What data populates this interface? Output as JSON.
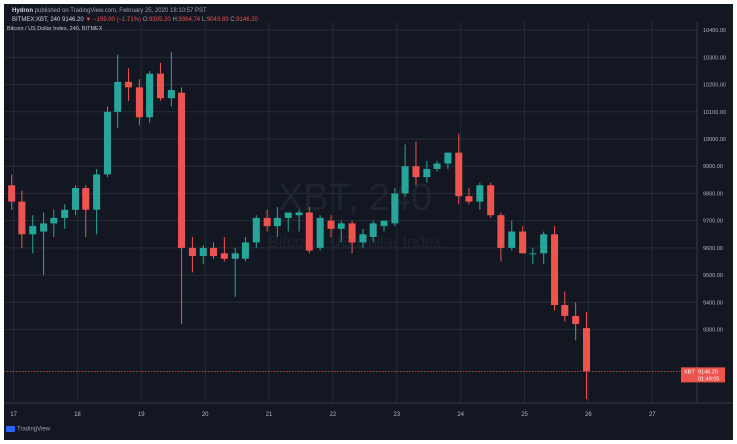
{
  "header": {
    "line1_author": "Hydron",
    "line1_rest": "published on TradingView.com, February 25, 2020 18:10:57 PST",
    "symbol": "BITMEX:XBT, 240",
    "price": "9146.20",
    "change": "▼ −159.00 (−1.71%)",
    "ohlc": [
      {
        "label": "O:",
        "value": "9305.20"
      },
      {
        "label": "H:",
        "value": "9364.74"
      },
      {
        "label": "L:",
        "value": "9043.83"
      },
      {
        "label": "C:",
        "value": "9146.20"
      }
    ]
  },
  "chart_title": "Bitcoin / US Dollar Index, 240, BITMEX",
  "watermark": {
    "main": "XBT, 240",
    "sub": "Bitcoin / US Dollar Index"
  },
  "footer": {
    "brand": "TradingView"
  },
  "price_tag": {
    "symbol": "XBT",
    "value": "9146.20",
    "countdown": "01:49:05"
  },
  "colors": {
    "background": "#131722",
    "up": "#26a69a",
    "down": "#ef5350",
    "grid": "#262b36",
    "text": "#b2b5be"
  },
  "chart_data": {
    "type": "candlestick",
    "x_ticks": [
      "17",
      "18",
      "19",
      "20",
      "21",
      "22",
      "23",
      "24",
      "25",
      "26",
      "27"
    ],
    "y_ticks": [
      9300,
      9400,
      9500,
      9600,
      9700,
      9800,
      9900,
      10000,
      10100,
      10200,
      10300,
      10400
    ],
    "x_range": [
      16.85,
      27.7
    ],
    "y_range": [
      9030,
      10430
    ],
    "last_price": 9146.2,
    "candles_4h": [
      {
        "t": 16.97,
        "o": 9830,
        "h": 9870,
        "l": 9740,
        "c": 9770
      },
      {
        "t": 17.13,
        "o": 9770,
        "h": 9810,
        "l": 9600,
        "c": 9650
      },
      {
        "t": 17.3,
        "o": 9650,
        "h": 9720,
        "l": 9580,
        "c": 9680
      },
      {
        "t": 17.47,
        "o": 9660,
        "h": 9730,
        "l": 9500,
        "c": 9690
      },
      {
        "t": 17.63,
        "o": 9690,
        "h": 9740,
        "l": 9640,
        "c": 9710
      },
      {
        "t": 17.8,
        "o": 9710,
        "h": 9760,
        "l": 9670,
        "c": 9740
      },
      {
        "t": 17.97,
        "o": 9740,
        "h": 9830,
        "l": 9720,
        "c": 9820
      },
      {
        "t": 18.13,
        "o": 9820,
        "h": 9830,
        "l": 9640,
        "c": 9740
      },
      {
        "t": 18.3,
        "o": 9740,
        "h": 9890,
        "l": 9650,
        "c": 9870
      },
      {
        "t": 18.47,
        "o": 9870,
        "h": 10120,
        "l": 9860,
        "c": 10100
      },
      {
        "t": 18.63,
        "o": 10100,
        "h": 10310,
        "l": 10040,
        "c": 10210
      },
      {
        "t": 18.8,
        "o": 10210,
        "h": 10260,
        "l": 10140,
        "c": 10190
      },
      {
        "t": 18.97,
        "o": 10190,
        "h": 10220,
        "l": 10050,
        "c": 10080
      },
      {
        "t": 19.13,
        "o": 10080,
        "h": 10250,
        "l": 10060,
        "c": 10240
      },
      {
        "t": 19.3,
        "o": 10240,
        "h": 10280,
        "l": 10140,
        "c": 10150
      },
      {
        "t": 19.47,
        "o": 10150,
        "h": 10320,
        "l": 10120,
        "c": 10180
      },
      {
        "t": 19.63,
        "o": 10170,
        "h": 10190,
        "l": 9320,
        "c": 9600
      },
      {
        "t": 19.8,
        "o": 9600,
        "h": 9640,
        "l": 9510,
        "c": 9570
      },
      {
        "t": 19.97,
        "o": 9570,
        "h": 9610,
        "l": 9540,
        "c": 9600
      },
      {
        "t": 20.13,
        "o": 9600,
        "h": 9620,
        "l": 9560,
        "c": 9570
      },
      {
        "t": 20.3,
        "o": 9580,
        "h": 9640,
        "l": 9550,
        "c": 9560
      },
      {
        "t": 20.47,
        "o": 9560,
        "h": 9600,
        "l": 9420,
        "c": 9580
      },
      {
        "t": 20.63,
        "o": 9560,
        "h": 9640,
        "l": 9550,
        "c": 9620
      },
      {
        "t": 20.8,
        "o": 9620,
        "h": 9720,
        "l": 9600,
        "c": 9710
      },
      {
        "t": 20.97,
        "o": 9710,
        "h": 9740,
        "l": 9660,
        "c": 9680
      },
      {
        "t": 21.13,
        "o": 9680,
        "h": 9750,
        "l": 9640,
        "c": 9710
      },
      {
        "t": 21.3,
        "o": 9710,
        "h": 9730,
        "l": 9660,
        "c": 9730
      },
      {
        "t": 21.47,
        "o": 9720,
        "h": 9740,
        "l": 9660,
        "c": 9730
      },
      {
        "t": 21.63,
        "o": 9730,
        "h": 9750,
        "l": 9580,
        "c": 9590
      },
      {
        "t": 21.8,
        "o": 9600,
        "h": 9720,
        "l": 9590,
        "c": 9710
      },
      {
        "t": 21.97,
        "o": 9700,
        "h": 9720,
        "l": 9640,
        "c": 9670
      },
      {
        "t": 22.13,
        "o": 9670,
        "h": 9700,
        "l": 9620,
        "c": 9690
      },
      {
        "t": 22.3,
        "o": 9690,
        "h": 9700,
        "l": 9580,
        "c": 9620
      },
      {
        "t": 22.47,
        "o": 9620,
        "h": 9670,
        "l": 9600,
        "c": 9650
      },
      {
        "t": 22.63,
        "o": 9640,
        "h": 9700,
        "l": 9620,
        "c": 9690
      },
      {
        "t": 22.8,
        "o": 9680,
        "h": 9700,
        "l": 9660,
        "c": 9700
      },
      {
        "t": 22.97,
        "o": 9690,
        "h": 9820,
        "l": 9680,
        "c": 9800
      },
      {
        "t": 23.13,
        "o": 9800,
        "h": 9980,
        "l": 9790,
        "c": 9900
      },
      {
        "t": 23.3,
        "o": 9900,
        "h": 9990,
        "l": 9830,
        "c": 9860
      },
      {
        "t": 23.47,
        "o": 9860,
        "h": 9920,
        "l": 9840,
        "c": 9890
      },
      {
        "t": 23.63,
        "o": 9890,
        "h": 9920,
        "l": 9880,
        "c": 9910
      },
      {
        "t": 23.8,
        "o": 9910,
        "h": 9950,
        "l": 9890,
        "c": 9950
      },
      {
        "t": 23.97,
        "o": 9950,
        "h": 10020,
        "l": 9760,
        "c": 9790
      },
      {
        "t": 24.13,
        "o": 9790,
        "h": 9820,
        "l": 9760,
        "c": 9770
      },
      {
        "t": 24.3,
        "o": 9770,
        "h": 9840,
        "l": 9740,
        "c": 9830
      },
      {
        "t": 24.47,
        "o": 9830,
        "h": 9840,
        "l": 9710,
        "c": 9720
      },
      {
        "t": 24.63,
        "o": 9720,
        "h": 9730,
        "l": 9550,
        "c": 9600
      },
      {
        "t": 24.8,
        "o": 9600,
        "h": 9700,
        "l": 9590,
        "c": 9660
      },
      {
        "t": 24.97,
        "o": 9660,
        "h": 9680,
        "l": 9580,
        "c": 9580
      },
      {
        "t": 25.13,
        "o": 9580,
        "h": 9600,
        "l": 9540,
        "c": 9580
      },
      {
        "t": 25.3,
        "o": 9580,
        "h": 9660,
        "l": 9540,
        "c": 9650
      },
      {
        "t": 25.47,
        "o": 9650,
        "h": 9680,
        "l": 9370,
        "c": 9390
      },
      {
        "t": 25.63,
        "o": 9390,
        "h": 9440,
        "l": 9330,
        "c": 9350
      },
      {
        "t": 25.8,
        "o": 9350,
        "h": 9400,
        "l": 9260,
        "c": 9320
      },
      {
        "t": 25.97,
        "o": 9305.2,
        "h": 9364.74,
        "l": 9043.83,
        "c": 9146.2
      }
    ]
  }
}
